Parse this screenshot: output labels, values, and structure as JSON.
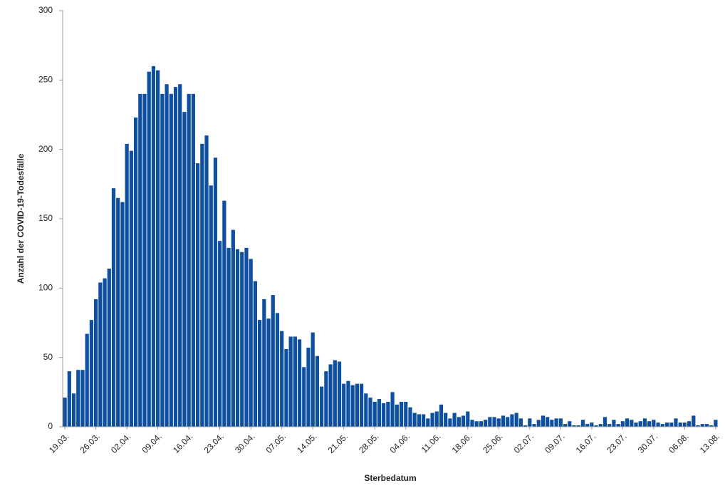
{
  "chart_data": {
    "type": "bar",
    "x_label": "Sterbedatum",
    "y_label": "Anzahl der COVID-19-Todesfälle",
    "color": "#0f4f9f",
    "ylim": [
      0,
      300
    ],
    "yticks": [
      0,
      50,
      100,
      150,
      200,
      250,
      300
    ],
    "grid": false,
    "categories": [
      "19.03.",
      null,
      null,
      null,
      null,
      null,
      null,
      "26.03.",
      null,
      null,
      null,
      null,
      null,
      null,
      "02.04.",
      null,
      null,
      null,
      null,
      null,
      null,
      "09.04.",
      null,
      null,
      null,
      null,
      null,
      null,
      "16.04.",
      null,
      null,
      null,
      null,
      null,
      null,
      "23.04.",
      null,
      null,
      null,
      null,
      null,
      null,
      "30.04.",
      null,
      null,
      null,
      null,
      null,
      null,
      "07.05.",
      null,
      null,
      null,
      null,
      null,
      null,
      "14.05.",
      null,
      null,
      null,
      null,
      null,
      null,
      "21.05.",
      null,
      null,
      null,
      null,
      null,
      null,
      "28.05.",
      null,
      null,
      null,
      null,
      null,
      null,
      "04.06.",
      null,
      null,
      null,
      null,
      null,
      null,
      "11.06.",
      null,
      null,
      null,
      null,
      null,
      null,
      "18.06.",
      null,
      null,
      null,
      null,
      null,
      null,
      "25.06.",
      null,
      null,
      null,
      null,
      null,
      null,
      "02.07.",
      null,
      null,
      null,
      null,
      null,
      null,
      "09.07.",
      null,
      null,
      null,
      null,
      null,
      null,
      "16.07.",
      null,
      null,
      null,
      null,
      null,
      null,
      "23.07.",
      null,
      null,
      null,
      null,
      null,
      null,
      "30.07.",
      null,
      null,
      null,
      null,
      null,
      null,
      "06.08.",
      null,
      null,
      null,
      null,
      null,
      null,
      "13.08."
    ],
    "values": [
      21,
      40,
      24,
      41,
      41,
      67,
      77,
      92,
      104,
      107,
      114,
      172,
      165,
      162,
      204,
      199,
      223,
      240,
      240,
      256,
      260,
      257,
      240,
      247,
      240,
      245,
      247,
      227,
      240,
      240,
      190,
      204,
      210,
      174,
      194,
      134,
      163,
      129,
      142,
      128,
      126,
      129,
      121,
      105,
      77,
      92,
      78,
      95,
      82,
      69,
      56,
      65,
      65,
      63,
      43,
      57,
      68,
      51,
      29,
      40,
      45,
      48,
      47,
      31,
      33,
      30,
      31,
      31,
      24,
      21,
      18,
      20,
      17,
      18,
      25,
      16,
      18,
      18,
      14,
      10,
      9,
      9,
      6,
      10,
      11,
      16,
      10,
      6,
      10,
      7,
      8,
      11,
      5,
      4,
      4,
      5,
      7,
      7,
      6,
      8,
      7,
      9,
      10,
      6,
      1,
      6,
      2,
      5,
      8,
      7,
      5,
      6,
      6,
      2,
      4,
      1,
      1,
      5,
      2,
      3,
      1,
      2,
      7,
      2,
      5,
      2,
      4,
      6,
      5,
      3,
      4,
      6,
      4,
      5,
      3,
      2,
      3,
      3,
      6,
      3,
      3,
      4,
      8,
      1,
      2,
      2,
      1,
      5
    ]
  }
}
